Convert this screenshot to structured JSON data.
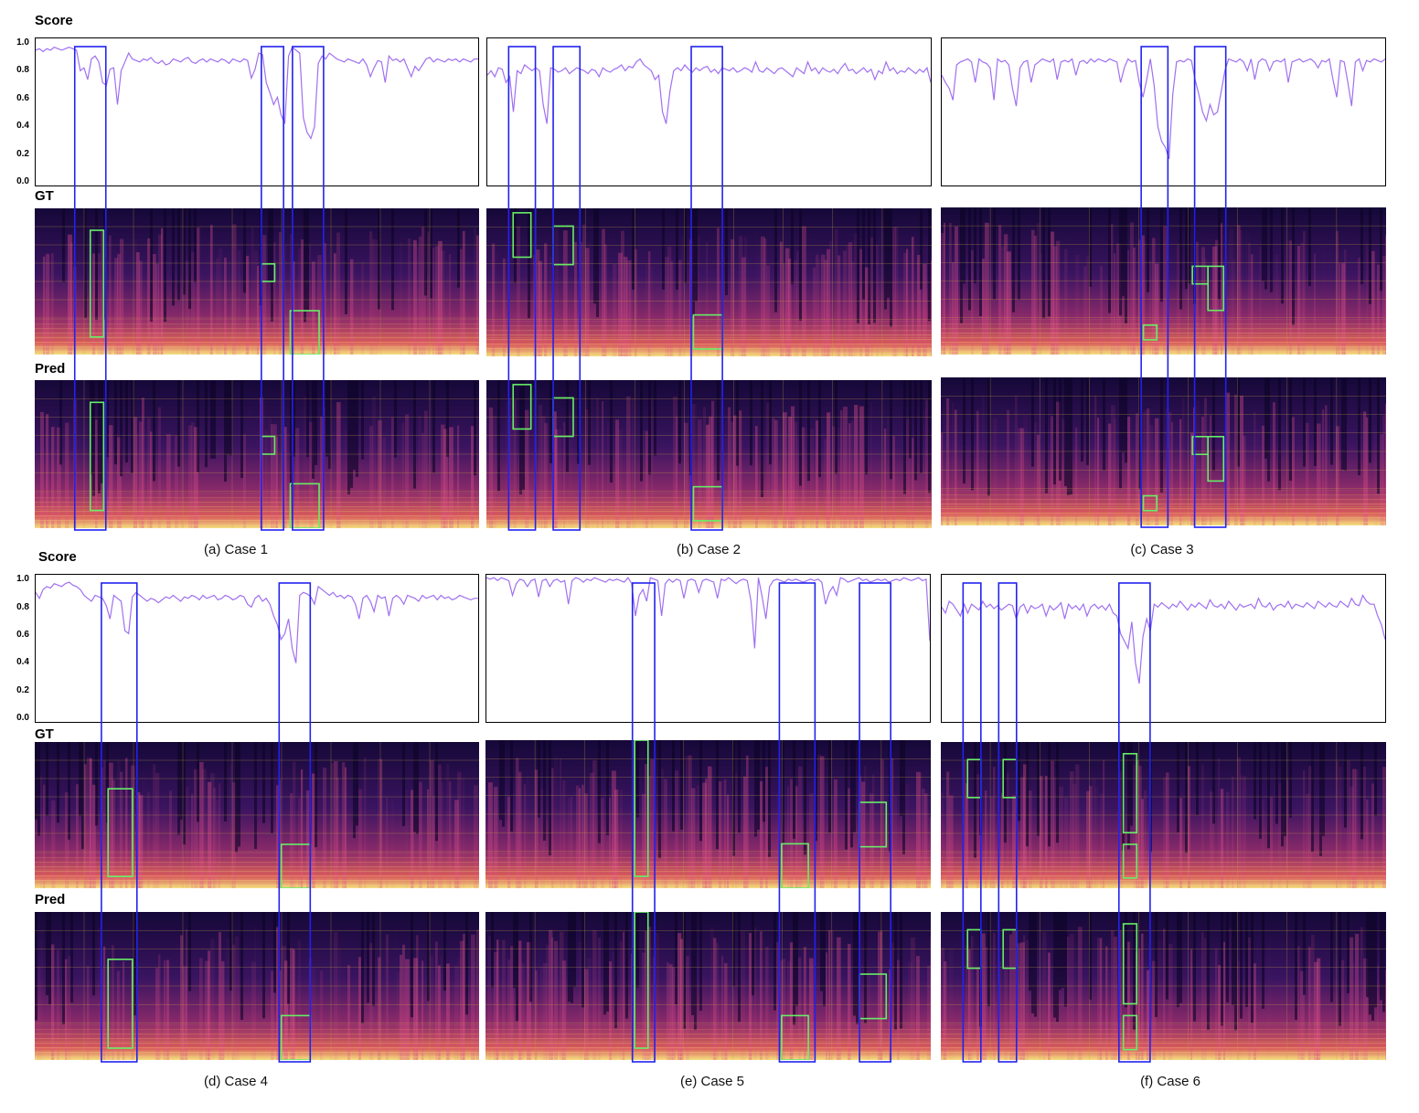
{
  "labels": {
    "score": "Score",
    "gt": "GT",
    "pred": "Pred"
  },
  "y_ticks": [
    "1.0",
    "0.8",
    "0.6",
    "0.4",
    "0.2",
    "0.0"
  ],
  "colors": {
    "score_line": "#a070f0",
    "highlight_region": "#2222ee",
    "difference_box": "#66ee66",
    "spectrogram_low": "#1a0a3a",
    "spectrogram_high": "#f4e080"
  },
  "chart_data": [
    {
      "type": "line",
      "caption": "(a) Case 1",
      "ylim": [
        0,
        1.0
      ],
      "series": [
        {
          "values": [
            0.92,
            0.93,
            0.91,
            0.93,
            0.92,
            0.94,
            0.93,
            0.92,
            0.93,
            0.94,
            0.93,
            0.92,
            0.78,
            0.8,
            0.72,
            0.86,
            0.88,
            0.84,
            0.7,
            0.68,
            0.79,
            0.8,
            0.55,
            0.78,
            0.84,
            0.9,
            0.86,
            0.85,
            0.84,
            0.86,
            0.85,
            0.87,
            0.84,
            0.83,
            0.85,
            0.82,
            0.83,
            0.86,
            0.85,
            0.84,
            0.86,
            0.87,
            0.84,
            0.83,
            0.85,
            0.86,
            0.84,
            0.86,
            0.85,
            0.84,
            0.86,
            0.85,
            0.83,
            0.86,
            0.85,
            0.84,
            0.86,
            0.85,
            0.73,
            0.79,
            0.9,
            0.89,
            0.7,
            0.63,
            0.55,
            0.6,
            0.48,
            0.42,
            0.88,
            0.94,
            0.92,
            0.9,
            0.46,
            0.36,
            0.32,
            0.4,
            0.83,
            0.88,
            0.86,
            0.9,
            0.88,
            0.86,
            0.85,
            0.84,
            0.86,
            0.85,
            0.84,
            0.83,
            0.86,
            0.82,
            0.74,
            0.8,
            0.85,
            0.84,
            0.7,
            0.88,
            0.85,
            0.86,
            0.84,
            0.86,
            0.8,
            0.74,
            0.81,
            0.78,
            0.82,
            0.86,
            0.87,
            0.84,
            0.86,
            0.85,
            0.84,
            0.86,
            0.85,
            0.86,
            0.84,
            0.86,
            0.85,
            0.84,
            0.86,
            0.86
          ]
        }
      ],
      "regions": [
        [
          0.09,
          0.16
        ],
        [
          0.51,
          0.56
        ],
        [
          0.58,
          0.65
        ]
      ]
    },
    {
      "type": "line",
      "caption": "(b) Case 2",
      "ylim": [
        0,
        1.0
      ],
      "series": [
        {
          "values": [
            0.75,
            0.78,
            0.74,
            0.8,
            0.79,
            0.7,
            0.74,
            0.5,
            0.78,
            0.76,
            0.82,
            0.8,
            0.78,
            0.8,
            0.78,
            0.55,
            0.42,
            0.8,
            0.79,
            0.77,
            0.78,
            0.8,
            0.76,
            0.78,
            0.8,
            0.79,
            0.78,
            0.76,
            0.79,
            0.78,
            0.74,
            0.8,
            0.78,
            0.77,
            0.79,
            0.8,
            0.82,
            0.78,
            0.81,
            0.8,
            0.84,
            0.86,
            0.82,
            0.8,
            0.78,
            0.72,
            0.75,
            0.5,
            0.42,
            0.64,
            0.78,
            0.8,
            0.78,
            0.82,
            0.79,
            0.77,
            0.8,
            0.78,
            0.8,
            0.81,
            0.77,
            0.79,
            0.76,
            0.8,
            0.79,
            0.78,
            0.8,
            0.77,
            0.78,
            0.8,
            0.79,
            0.77,
            0.84,
            0.78,
            0.77,
            0.8,
            0.78,
            0.76,
            0.79,
            0.8,
            0.78,
            0.76,
            0.74,
            0.8,
            0.78,
            0.76,
            0.84,
            0.78,
            0.8,
            0.76,
            0.8,
            0.78,
            0.77,
            0.79,
            0.76,
            0.8,
            0.83,
            0.78,
            0.79,
            0.76,
            0.78,
            0.8,
            0.77,
            0.79,
            0.72,
            0.78,
            0.76,
            0.84,
            0.78,
            0.8,
            0.76,
            0.78,
            0.77,
            0.8,
            0.78,
            0.76,
            0.79,
            0.77,
            0.8,
            0.7
          ]
        }
      ],
      "regions": [
        [
          0.05,
          0.11
        ],
        [
          0.15,
          0.21
        ],
        [
          0.46,
          0.53
        ]
      ]
    },
    {
      "type": "line",
      "caption": "(c) Case 3",
      "ylim": [
        0,
        1.0
      ],
      "series": [
        {
          "values": [
            0.75,
            0.7,
            0.66,
            0.58,
            0.82,
            0.84,
            0.85,
            0.86,
            0.84,
            0.7,
            0.86,
            0.84,
            0.83,
            0.8,
            0.58,
            0.86,
            0.84,
            0.85,
            0.82,
            0.66,
            0.54,
            0.8,
            0.84,
            0.85,
            0.7,
            0.82,
            0.84,
            0.86,
            0.85,
            0.84,
            0.86,
            0.72,
            0.84,
            0.85,
            0.84,
            0.86,
            0.75,
            0.84,
            0.85,
            0.83,
            0.86,
            0.84,
            0.86,
            0.85,
            0.84,
            0.86,
            0.85,
            0.84,
            0.7,
            0.8,
            0.86,
            0.84,
            0.85,
            0.7,
            0.6,
            0.72,
            0.86,
            0.68,
            0.4,
            0.3,
            0.26,
            0.18,
            0.62,
            0.84,
            0.85,
            0.84,
            0.86,
            0.85,
            0.72,
            0.62,
            0.5,
            0.44,
            0.55,
            0.48,
            0.5,
            0.64,
            0.78,
            0.86,
            0.85,
            0.84,
            0.86,
            0.84,
            0.78,
            0.86,
            0.72,
            0.84,
            0.86,
            0.85,
            0.78,
            0.84,
            0.85,
            0.84,
            0.86,
            0.7,
            0.84,
            0.85,
            0.86,
            0.84,
            0.85,
            0.86,
            0.84,
            0.8,
            0.85,
            0.84,
            0.86,
            0.72,
            0.6,
            0.85,
            0.84,
            0.7,
            0.54,
            0.84,
            0.86,
            0.78,
            0.85,
            0.84,
            0.86,
            0.85,
            0.84,
            0.86
          ]
        }
      ],
      "regions": [
        [
          0.45,
          0.51
        ],
        [
          0.57,
          0.64
        ]
      ]
    },
    {
      "type": "line",
      "caption": "(d) Case 4",
      "ylim": [
        0,
        1.0
      ],
      "series": [
        {
          "values": [
            0.88,
            0.84,
            0.9,
            0.92,
            0.91,
            0.94,
            0.93,
            0.92,
            0.94,
            0.95,
            0.93,
            0.92,
            0.9,
            0.86,
            0.84,
            0.82,
            0.86,
            0.85,
            0.84,
            0.79,
            0.7,
            0.86,
            0.84,
            0.82,
            0.62,
            0.6,
            0.85,
            0.88,
            0.86,
            0.84,
            0.82,
            0.84,
            0.83,
            0.81,
            0.83,
            0.85,
            0.84,
            0.86,
            0.84,
            0.82,
            0.85,
            0.84,
            0.86,
            0.85,
            0.83,
            0.86,
            0.84,
            0.85,
            0.86,
            0.83,
            0.84,
            0.86,
            0.85,
            0.83,
            0.84,
            0.86,
            0.85,
            0.8,
            0.78,
            0.84,
            0.86,
            0.82,
            0.84,
            0.8,
            0.72,
            0.66,
            0.56,
            0.6,
            0.7,
            0.5,
            0.4,
            0.86,
            0.88,
            0.87,
            0.85,
            0.8,
            0.92,
            0.9,
            0.88,
            0.86,
            0.88,
            0.85,
            0.86,
            0.84,
            0.86,
            0.85,
            0.8,
            0.7,
            0.84,
            0.86,
            0.82,
            0.75,
            0.86,
            0.84,
            0.85,
            0.72,
            0.84,
            0.86,
            0.84,
            0.8,
            0.86,
            0.85,
            0.84,
            0.82,
            0.86,
            0.84,
            0.85,
            0.86,
            0.83,
            0.86,
            0.84,
            0.85,
            0.83,
            0.84,
            0.86,
            0.85,
            0.84,
            0.83,
            0.84,
            0.84
          ]
        }
      ],
      "regions": [
        [
          0.15,
          0.23
        ],
        [
          0.55,
          0.62
        ]
      ]
    },
    {
      "type": "line",
      "caption": "(e) Case 5",
      "ylim": [
        0,
        1.0
      ],
      "series": [
        {
          "values": [
            0.98,
            0.97,
            0.98,
            0.96,
            0.98,
            0.97,
            0.96,
            0.86,
            0.94,
            0.97,
            0.96,
            0.92,
            0.96,
            0.97,
            0.85,
            0.96,
            0.97,
            0.92,
            0.96,
            0.97,
            0.95,
            0.96,
            0.8,
            0.96,
            0.98,
            0.97,
            0.95,
            0.97,
            0.96,
            0.98,
            0.97,
            0.96,
            0.95,
            0.97,
            0.96,
            0.97,
            0.96,
            0.95,
            0.98,
            0.94,
            0.72,
            0.86,
            0.9,
            0.82,
            0.98,
            0.97,
            0.96,
            0.72,
            0.94,
            0.97,
            0.95,
            0.97,
            0.96,
            0.84,
            0.96,
            0.97,
            0.96,
            0.88,
            0.96,
            0.97,
            0.96,
            0.95,
            0.84,
            0.97,
            0.96,
            0.98,
            0.96,
            0.94,
            0.96,
            0.97,
            0.96,
            0.82,
            0.5,
            0.98,
            0.85,
            0.7,
            0.92,
            0.96,
            0.97,
            0.96,
            0.95,
            0.97,
            0.96,
            0.97,
            0.96,
            0.95,
            0.96,
            0.97,
            0.96,
            0.97,
            0.95,
            0.8,
            0.88,
            0.92,
            0.86,
            0.98,
            0.97,
            0.95,
            0.96,
            0.97,
            0.98,
            0.96,
            0.97,
            0.95,
            0.96,
            0.97,
            0.96,
            0.97,
            0.95,
            0.96,
            0.97,
            0.96,
            0.98,
            0.97,
            0.96,
            0.97,
            0.98,
            0.96,
            0.97,
            0.55
          ]
        }
      ],
      "regions": [
        [
          0.33,
          0.38
        ],
        [
          0.66,
          0.74
        ],
        [
          0.84,
          0.91
        ]
      ]
    },
    {
      "type": "line",
      "caption": "(f)  Case 6",
      "ylim": [
        0,
        1.0
      ],
      "series": [
        {
          "values": [
            0.78,
            0.74,
            0.82,
            0.8,
            0.76,
            0.72,
            0.8,
            0.74,
            0.8,
            0.78,
            0.76,
            0.82,
            0.78,
            0.8,
            0.77,
            0.79,
            0.76,
            0.78,
            0.8,
            0.79,
            0.7,
            0.78,
            0.8,
            0.74,
            0.79,
            0.77,
            0.78,
            0.8,
            0.72,
            0.79,
            0.76,
            0.78,
            0.81,
            0.7,
            0.8,
            0.77,
            0.79,
            0.76,
            0.8,
            0.72,
            0.78,
            0.8,
            0.77,
            0.79,
            0.76,
            0.8,
            0.74,
            0.72,
            0.6,
            0.55,
            0.5,
            0.68,
            0.4,
            0.26,
            0.58,
            0.7,
            0.62,
            0.8,
            0.78,
            0.81,
            0.79,
            0.77,
            0.8,
            0.78,
            0.82,
            0.79,
            0.76,
            0.8,
            0.78,
            0.81,
            0.79,
            0.77,
            0.83,
            0.79,
            0.78,
            0.8,
            0.77,
            0.82,
            0.79,
            0.76,
            0.8,
            0.78,
            0.79,
            0.8,
            0.77,
            0.84,
            0.79,
            0.78,
            0.81,
            0.76,
            0.79,
            0.8,
            0.78,
            0.82,
            0.77,
            0.8,
            0.79,
            0.78,
            0.81,
            0.79,
            0.77,
            0.82,
            0.8,
            0.78,
            0.81,
            0.79,
            0.78,
            0.82,
            0.8,
            0.78,
            0.84,
            0.8,
            0.79,
            0.86,
            0.82,
            0.8,
            0.8,
            0.72,
            0.66,
            0.56
          ]
        }
      ],
      "regions": [
        [
          0.05,
          0.09
        ],
        [
          0.13,
          0.17
        ],
        [
          0.4,
          0.47
        ]
      ]
    }
  ]
}
